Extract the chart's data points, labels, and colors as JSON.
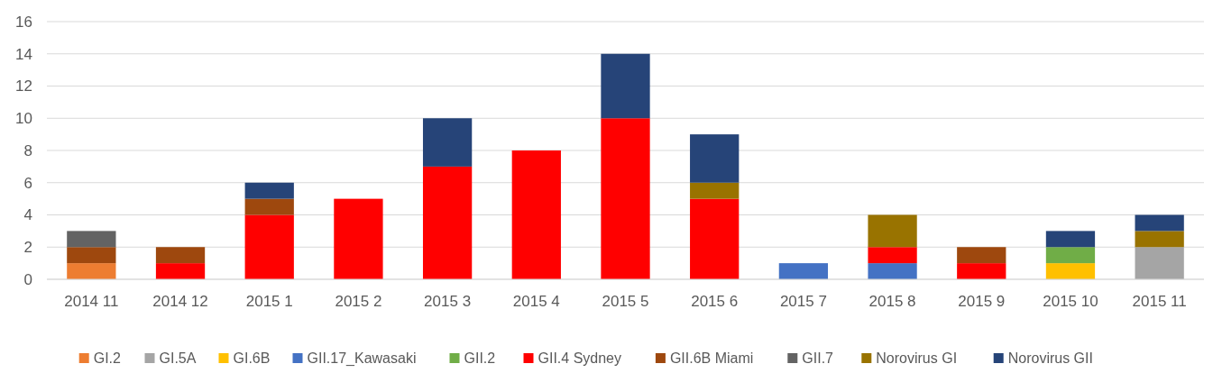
{
  "chart_data": {
    "type": "bar",
    "stacked": true,
    "categories": [
      "2014 11",
      "2014 12",
      "2015 1",
      "2015 2",
      "2015 3",
      "2015 4",
      "2015 5",
      "2015 6",
      "2015 7",
      "2015 8",
      "2015 9",
      "2015 10",
      "2015 11"
    ],
    "series": [
      {
        "name": "GI.2",
        "color": "#ed7d31",
        "values": [
          1,
          null,
          null,
          null,
          null,
          null,
          null,
          null,
          null,
          null,
          null,
          null,
          null
        ]
      },
      {
        "name": "GI.5A",
        "color": "#a5a5a5",
        "values": [
          null,
          null,
          null,
          null,
          null,
          null,
          null,
          null,
          null,
          null,
          null,
          null,
          2
        ]
      },
      {
        "name": "GI.6B",
        "color": "#ffc000",
        "values": [
          null,
          null,
          null,
          null,
          null,
          null,
          null,
          null,
          null,
          null,
          null,
          1,
          null
        ]
      },
      {
        "name": "GII.17_Kawasaki",
        "color": "#4472c4",
        "values": [
          null,
          null,
          null,
          null,
          null,
          null,
          null,
          null,
          1,
          1,
          null,
          null,
          null
        ]
      },
      {
        "name": "GII.2",
        "color": "#70ad47",
        "values": [
          null,
          null,
          null,
          null,
          null,
          null,
          null,
          null,
          null,
          null,
          null,
          1,
          null
        ]
      },
      {
        "name": "GII.4 Sydney",
        "color": "#ff0000",
        "values": [
          null,
          1,
          4,
          5,
          7,
          8,
          10,
          5,
          null,
          1,
          1,
          null,
          null
        ]
      },
      {
        "name": "GII.6B Miami",
        "color": "#9e480e",
        "values": [
          1,
          1,
          1,
          null,
          null,
          null,
          null,
          null,
          null,
          null,
          1,
          null,
          null
        ]
      },
      {
        "name": "GII.7",
        "color": "#636363",
        "values": [
          1,
          null,
          null,
          null,
          null,
          null,
          null,
          null,
          null,
          null,
          null,
          null,
          null
        ]
      },
      {
        "name": "Norovirus GI",
        "color": "#997300",
        "values": [
          null,
          null,
          null,
          null,
          null,
          null,
          null,
          1,
          null,
          2,
          null,
          null,
          1
        ]
      },
      {
        "name": "Norovirus GII",
        "color": "#264478",
        "values": [
          null,
          null,
          1,
          null,
          3,
          null,
          4,
          3,
          null,
          null,
          null,
          1,
          1
        ]
      }
    ],
    "ylim": [
      0,
      16
    ],
    "yticks": [
      0,
      2,
      4,
      6,
      8,
      10,
      12,
      14,
      16
    ],
    "grid": "y",
    "legend": "bottom"
  }
}
